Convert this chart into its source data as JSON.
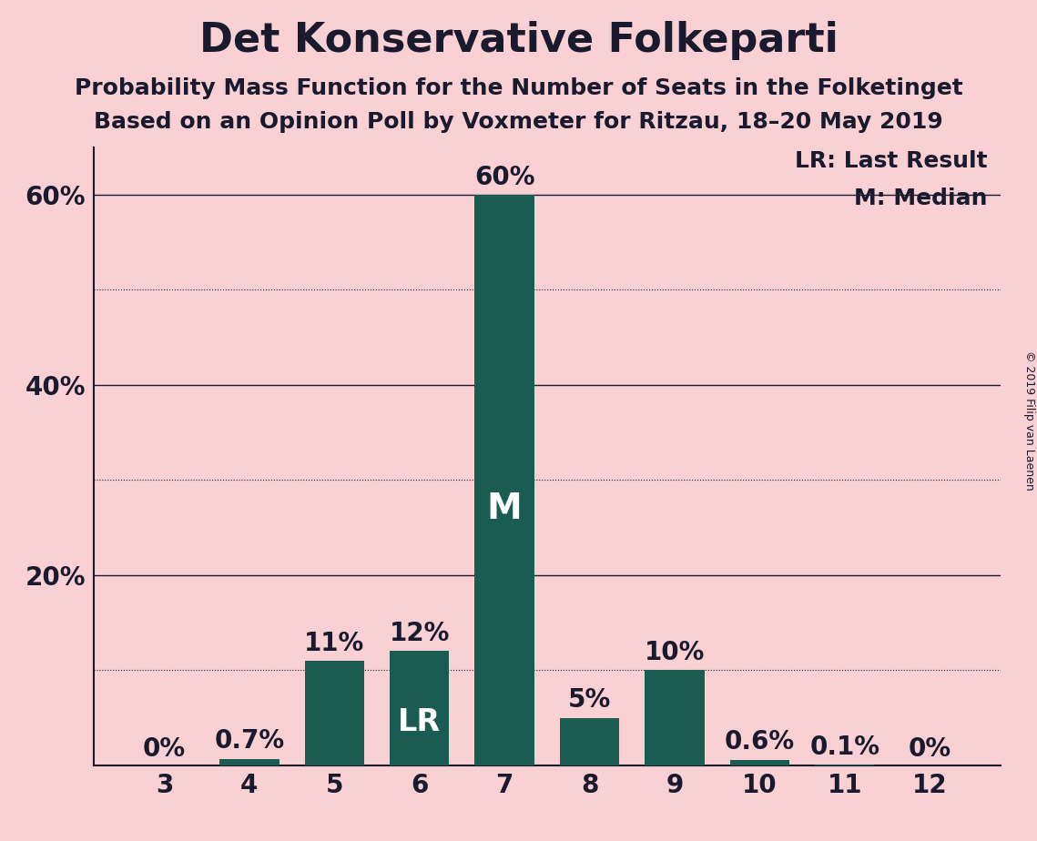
{
  "title": "Det Konservative Folkeparti",
  "subtitle1": "Probability Mass Function for the Number of Seats in the Folketinget",
  "subtitle2": "Based on an Opinion Poll by Voxmeter for Ritzau, 18–20 May 2019",
  "copyright": "© 2019 Filip van Laenen",
  "categories": [
    3,
    4,
    5,
    6,
    7,
    8,
    9,
    10,
    11,
    12
  ],
  "values": [
    0.0,
    0.7,
    11.0,
    12.0,
    60.0,
    5.0,
    10.0,
    0.6,
    0.1,
    0.0
  ],
  "labels": [
    "0%",
    "0.7%",
    "11%",
    "12%",
    "60%",
    "5%",
    "10%",
    "0.6%",
    "0.1%",
    "0%"
  ],
  "bar_color": "#1a5c52",
  "background_color": "#f9d0d4",
  "median_index": 4,
  "lr_index": 3,
  "median_label": "M",
  "lr_label": "LR",
  "legend_lr": "LR: Last Result",
  "legend_m": "M: Median",
  "ylim": [
    0,
    65
  ],
  "solid_gridlines": [
    20,
    40,
    60
  ],
  "dotted_gridlines": [
    10,
    30,
    50
  ],
  "ytick_positions": [
    20,
    40,
    60
  ],
  "ytick_labels": [
    "20%",
    "40%",
    "60%"
  ],
  "title_fontsize": 32,
  "subtitle_fontsize": 18,
  "tick_fontsize": 20,
  "bar_label_fontsize": 20,
  "inbar_fontsize_lr": 24,
  "inbar_fontsize_m": 28,
  "legend_fontsize": 18,
  "text_color": "#1a1a2e",
  "grid_color": "#1a1a2e",
  "spine_color": "#1a1a2e"
}
